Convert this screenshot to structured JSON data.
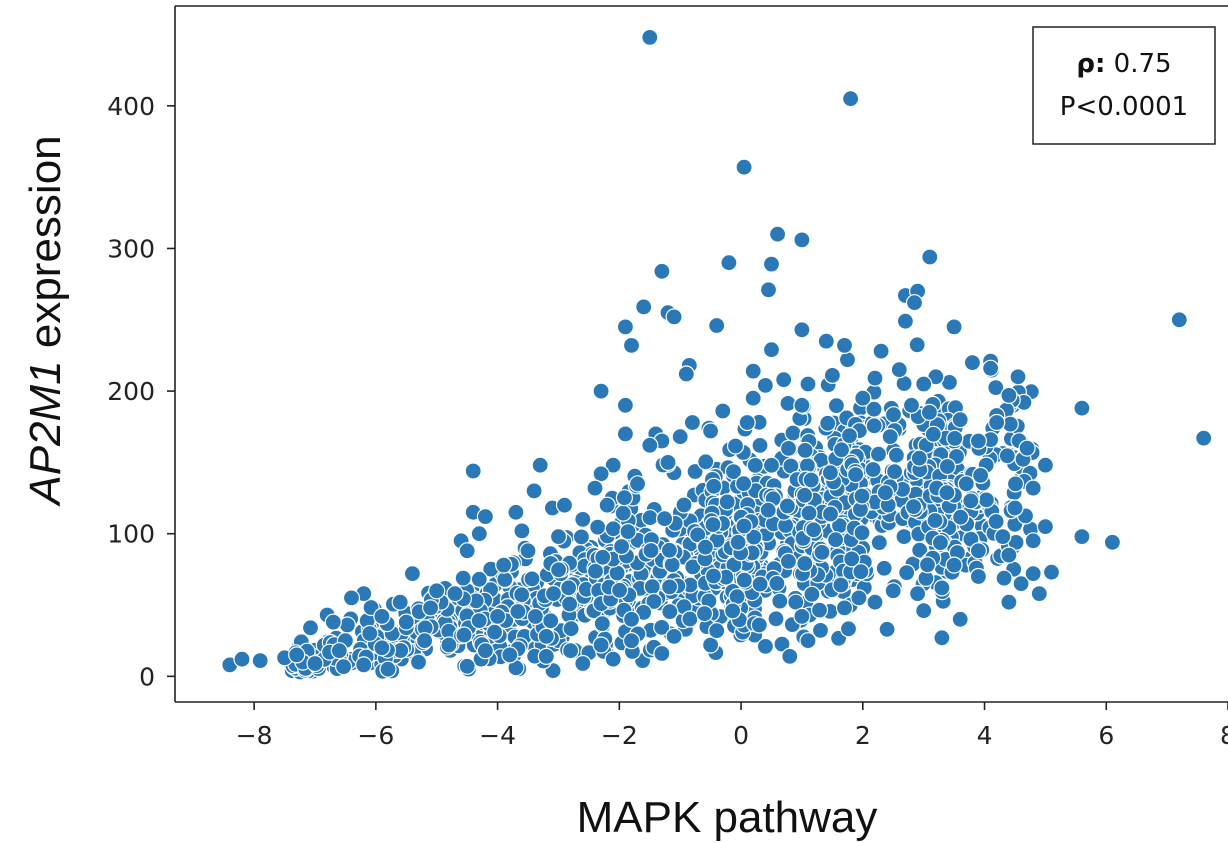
{
  "chart_data": {
    "type": "scatter",
    "xlabel": "MAPK pathway",
    "ylabel_italic": "AP2M1",
    "ylabel_rest": " expression",
    "xlim": [
      -9.3,
      8.0
    ],
    "ylim": [
      -18,
      470
    ],
    "xticks": [
      -8,
      -6,
      -4,
      -2,
      0,
      2,
      4,
      6,
      8
    ],
    "yticks": [
      0,
      100,
      200,
      300,
      400
    ],
    "grid": false,
    "annotation": {
      "rho_label": "ρ:",
      "rho_value": " 0.75",
      "p_text": "P<0.0001",
      "position": "top-right"
    },
    "colors": {
      "marker": "#2b78b6",
      "marker_edge": "#ffffff",
      "axis": "#222222"
    },
    "points": [
      [
        -1.5,
        448
      ],
      [
        1.8,
        405
      ],
      [
        0.05,
        357
      ],
      [
        0.6,
        310
      ],
      [
        1.0,
        306
      ],
      [
        3.1,
        294
      ],
      [
        -0.2,
        290
      ],
      [
        0.5,
        289
      ],
      [
        -1.3,
        284
      ],
      [
        0.45,
        271
      ],
      [
        2.7,
        267
      ],
      [
        2.9,
        270
      ],
      [
        2.85,
        262
      ],
      [
        -1.6,
        259
      ],
      [
        -1.2,
        255
      ],
      [
        -1.1,
        252
      ],
      [
        2.7,
        249
      ],
      [
        -1.9,
        245
      ],
      [
        -0.4,
        246
      ],
      [
        3.5,
        245
      ],
      [
        7.2,
        250
      ],
      [
        1.0,
        243
      ],
      [
        1.4,
        235
      ],
      [
        1.7,
        232
      ],
      [
        -1.8,
        232
      ],
      [
        0.5,
        229
      ],
      [
        2.3,
        228
      ],
      [
        4.1,
        221
      ],
      [
        3.8,
        220
      ],
      [
        4.1,
        216
      ],
      [
        -0.85,
        218
      ],
      [
        -0.9,
        212
      ],
      [
        0.2,
        214
      ],
      [
        0.4,
        204
      ],
      [
        -2.3,
        200
      ],
      [
        -1.9,
        190
      ],
      [
        5.6,
        188
      ],
      [
        -1.4,
        170
      ],
      [
        -1.9,
        170
      ],
      [
        -1.3,
        165
      ],
      [
        7.6,
        167
      ],
      [
        -1.0,
        168
      ],
      [
        4.7,
        160
      ],
      [
        -2.1,
        148
      ],
      [
        -3.3,
        148
      ],
      [
        -4.4,
        144
      ],
      [
        -2.3,
        142
      ],
      [
        -3.4,
        130
      ],
      [
        -4.4,
        115
      ],
      [
        -4.2,
        112
      ],
      [
        -3.7,
        115
      ],
      [
        -3.1,
        118
      ],
      [
        -4.3,
        100
      ],
      [
        -4.6,
        95
      ],
      [
        -4.5,
        88
      ],
      [
        -5.4,
        72
      ],
      [
        -6.2,
        58
      ],
      [
        -6.4,
        55
      ],
      [
        -6.8,
        43
      ],
      [
        -6.7,
        38
      ],
      [
        -6.5,
        25
      ],
      [
        -7.2,
        10
      ],
      [
        -7.9,
        11
      ],
      [
        -8.4,
        8
      ],
      [
        -8.2,
        12
      ],
      [
        -7.5,
        13
      ],
      [
        -7.0,
        9
      ],
      [
        -6.2,
        8
      ],
      [
        -5.8,
        5
      ],
      [
        -5.3,
        10
      ],
      [
        -4.5,
        7
      ],
      [
        -3.7,
        6
      ],
      [
        -2.6,
        9
      ],
      [
        -2.1,
        12
      ],
      [
        -1.3,
        16
      ],
      [
        -0.5,
        22
      ],
      [
        0.4,
        21
      ],
      [
        0.8,
        14
      ],
      [
        1.1,
        25
      ],
      [
        2.4,
        33
      ],
      [
        3.0,
        46
      ],
      [
        3.3,
        27
      ],
      [
        3.6,
        40
      ],
      [
        4.4,
        52
      ],
      [
        4.6,
        65
      ],
      [
        4.9,
        58
      ],
      [
        5.1,
        73
      ],
      [
        4.8,
        72
      ],
      [
        5.0,
        105
      ],
      [
        5.6,
        98
      ],
      [
        6.1,
        94
      ],
      [
        5.0,
        148
      ],
      [
        4.8,
        132
      ],
      [
        4.55,
        210
      ],
      [
        4.4,
        197
      ],
      [
        4.2,
        178
      ],
      [
        4.1,
        166
      ],
      [
        3.9,
        165
      ],
      [
        3.2,
        210
      ],
      [
        3.0,
        205
      ],
      [
        2.6,
        215
      ],
      [
        2.2,
        209
      ],
      [
        1.5,
        211
      ],
      [
        1.1,
        205
      ],
      [
        0.7,
        208
      ],
      [
        0.2,
        195
      ],
      [
        -0.3,
        186
      ],
      [
        -0.8,
        178
      ],
      [
        -1.5,
        162
      ],
      [
        -2.4,
        132
      ],
      [
        -2.9,
        120
      ],
      [
        -3.6,
        102
      ],
      [
        -5.0,
        60
      ],
      [
        -5.6,
        52
      ],
      [
        -5.9,
        42
      ],
      [
        -6.1,
        30
      ],
      [
        -5.9,
        20
      ],
      [
        -6.6,
        18
      ],
      [
        -7.3,
        15
      ],
      [
        -4.0,
        42
      ],
      [
        -3.2,
        28
      ],
      [
        -1.8,
        40
      ],
      [
        -0.6,
        44
      ],
      [
        0.9,
        52
      ],
      [
        2.5,
        60
      ],
      [
        3.5,
        78
      ],
      [
        3.9,
        88
      ],
      [
        4.3,
        98
      ],
      [
        4.5,
        118
      ],
      [
        3.7,
        135
      ],
      [
        3.6,
        180
      ],
      [
        2.8,
        190
      ],
      [
        2.0,
        195
      ],
      [
        1.0,
        190
      ],
      [
        0.1,
        178
      ],
      [
        -0.5,
        172
      ],
      [
        -1.2,
        150
      ],
      [
        -1.7,
        135
      ],
      [
        -2.2,
        120
      ],
      [
        -2.6,
        110
      ],
      [
        -3.0,
        98
      ],
      [
        -3.5,
        88
      ],
      [
        -3.9,
        78
      ],
      [
        -4.3,
        68
      ],
      [
        -4.7,
        58
      ],
      [
        -5.1,
        48
      ],
      [
        -5.5,
        38
      ],
      [
        -5.2,
        25
      ],
      [
        -4.8,
        22
      ],
      [
        -4.2,
        18
      ],
      [
        -3.8,
        15
      ],
      [
        -3.2,
        14
      ],
      [
        -2.8,
        18
      ],
      [
        -2.3,
        22
      ],
      [
        -1.8,
        25
      ],
      [
        -1.1,
        28
      ],
      [
        -0.4,
        32
      ],
      [
        0.3,
        36
      ],
      [
        1.0,
        42
      ],
      [
        1.7,
        48
      ],
      [
        2.2,
        52
      ],
      [
        2.9,
        58
      ],
      [
        3.3,
        62
      ],
      [
        3.9,
        70
      ],
      [
        4.4,
        85
      ],
      [
        4.8,
        95
      ]
    ],
    "clouds": [
      {
        "x_range": [
          -7.4,
          -4.2
        ],
        "center": [
          -5.8,
          24
        ],
        "half_width": 20,
        "count": 160
      },
      {
        "x_range": [
          -4.6,
          -1.8
        ],
        "center": [
          -3.2,
          55
        ],
        "half_width": 32,
        "count": 240
      },
      {
        "x_range": [
          -2.4,
          0.4
        ],
        "center": [
          -1.0,
          80
        ],
        "half_width": 48,
        "count": 280
      },
      {
        "x_range": [
          -0.6,
          2.0
        ],
        "center": [
          0.7,
          105
        ],
        "half_width": 58,
        "count": 300
      },
      {
        "x_range": [
          1.0,
          3.6
        ],
        "center": [
          2.3,
          128
        ],
        "half_width": 58,
        "count": 300
      },
      {
        "x_range": [
          2.8,
          4.8
        ],
        "center": [
          3.8,
          135
        ],
        "half_width": 52,
        "count": 170
      }
    ]
  }
}
